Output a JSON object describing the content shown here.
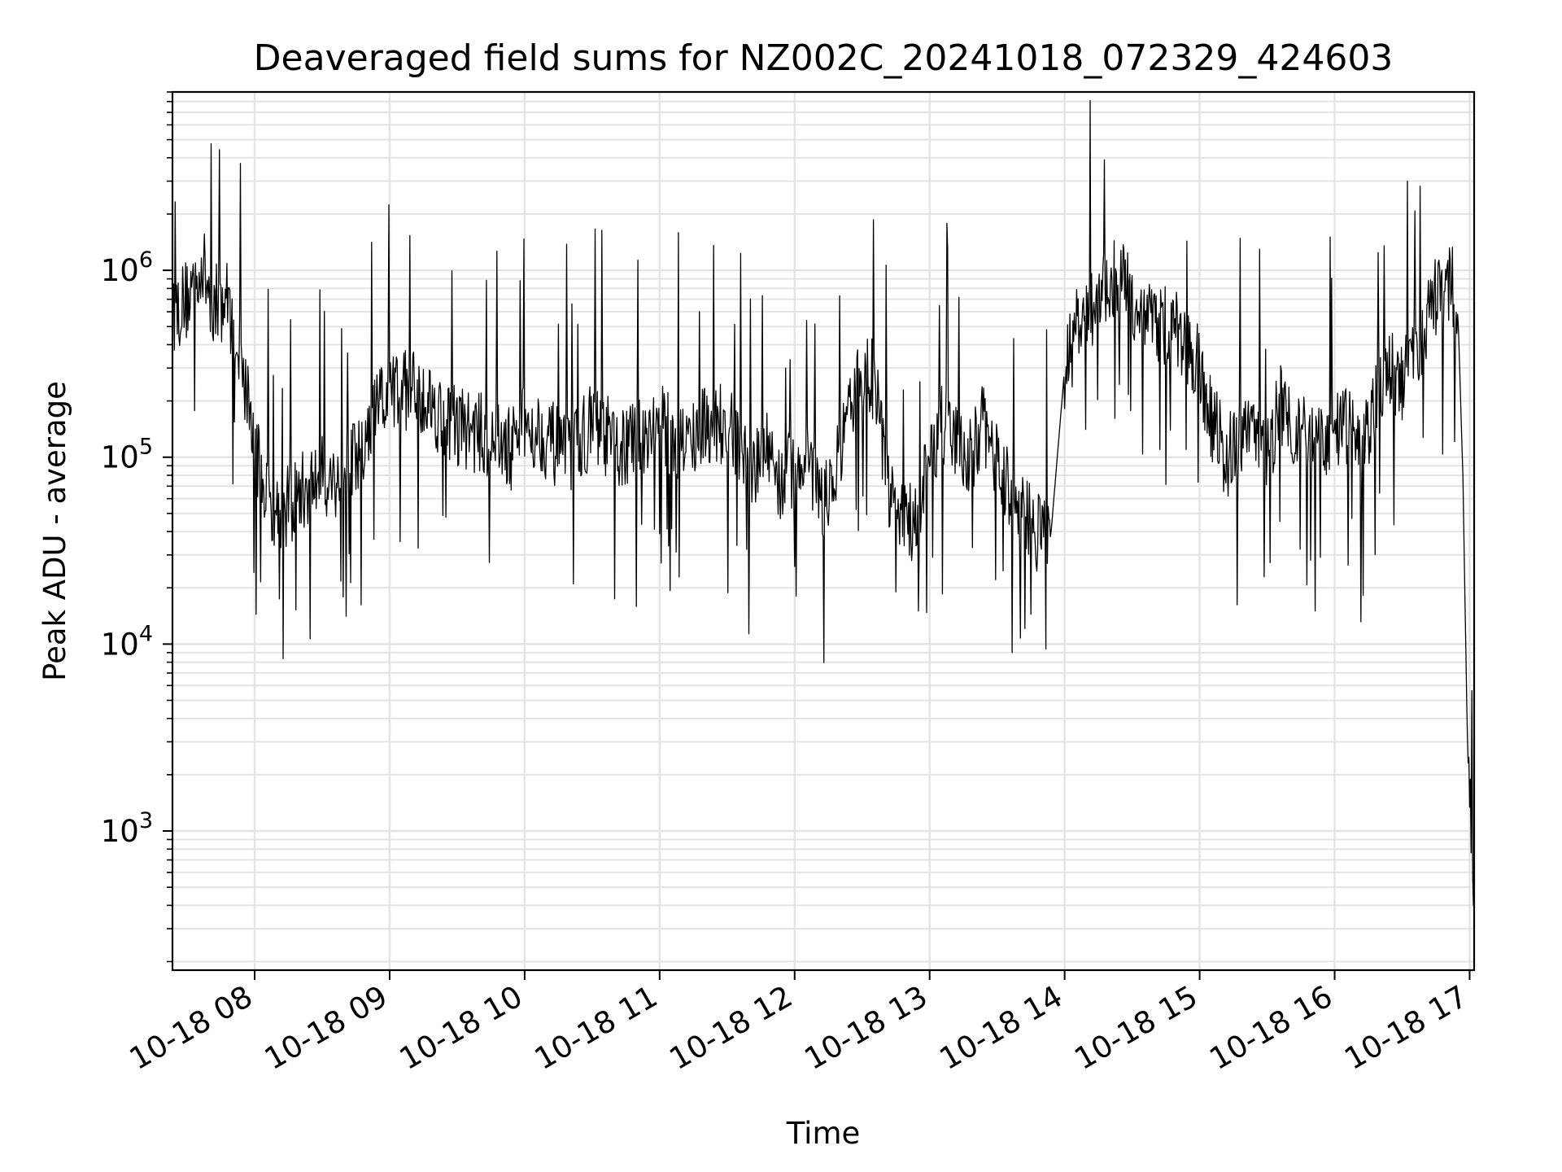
{
  "chart_data": {
    "type": "line",
    "title": "Deaveraged field sums for NZ002C_20241018_072329_424603",
    "xlabel": "Time",
    "ylabel": "Peak ADU - average",
    "y_scale": "log",
    "ylim": [
      180,
      9000000
    ],
    "xlim": [
      "2024-10-18 07:23:29",
      "2024-10-18 17:02:00"
    ],
    "x_tick_labels": [
      "10-18 08",
      "10-18 09",
      "10-18 10",
      "10-18 11",
      "10-18 12",
      "10-18 13",
      "10-18 14",
      "10-18 15",
      "10-18 16",
      "10-18 17"
    ],
    "y_tick_labels": [
      {
        "base": "10",
        "exp": "3",
        "value": 1000
      },
      {
        "base": "10",
        "exp": "4",
        "value": 10000
      },
      {
        "base": "10",
        "exp": "5",
        "value": 100000
      },
      {
        "base": "10",
        "exp": "6",
        "value": 1000000
      }
    ],
    "grid": true,
    "line_color": "#000000",
    "series": [
      {
        "x": [
          "2024-10-18 07:24",
          "2024-10-18 07:30",
          "2024-10-18 07:36",
          "2024-10-18 07:42",
          "2024-10-18 07:48",
          "2024-10-18 07:54",
          "2024-10-18 08:00",
          "2024-10-18 08:06",
          "2024-10-18 08:12",
          "2024-10-18 08:18",
          "2024-10-18 08:24",
          "2024-10-18 08:30",
          "2024-10-18 08:36",
          "2024-10-18 08:42",
          "2024-10-18 08:48",
          "2024-10-18 08:54",
          "2024-10-18 09:00",
          "2024-10-18 09:06",
          "2024-10-18 09:12",
          "2024-10-18 09:18",
          "2024-10-18 09:24",
          "2024-10-18 09:30",
          "2024-10-18 09:36",
          "2024-10-18 09:42",
          "2024-10-18 09:48",
          "2024-10-18 09:54",
          "2024-10-18 10:00",
          "2024-10-18 10:06",
          "2024-10-18 10:12",
          "2024-10-18 10:18",
          "2024-10-18 10:24",
          "2024-10-18 10:30",
          "2024-10-18 10:36",
          "2024-10-18 10:42",
          "2024-10-18 10:48",
          "2024-10-18 10:54",
          "2024-10-18 11:00",
          "2024-10-18 11:06",
          "2024-10-18 11:12",
          "2024-10-18 11:18",
          "2024-10-18 11:24",
          "2024-10-18 11:30",
          "2024-10-18 11:36",
          "2024-10-18 11:42",
          "2024-10-18 11:48",
          "2024-10-18 11:54",
          "2024-10-18 12:00",
          "2024-10-18 12:06",
          "2024-10-18 12:12",
          "2024-10-18 12:18",
          "2024-10-18 12:24",
          "2024-10-18 12:30",
          "2024-10-18 12:36",
          "2024-10-18 12:42",
          "2024-10-18 12:48",
          "2024-10-18 12:54",
          "2024-10-18 13:00",
          "2024-10-18 13:06",
          "2024-10-18 13:12",
          "2024-10-18 13:18",
          "2024-10-18 13:24",
          "2024-10-18 13:30",
          "2024-10-18 13:36",
          "2024-10-18 13:42",
          "2024-10-18 13:48",
          "2024-10-18 13:54",
          "2024-10-18 14:00",
          "2024-10-18 14:06",
          "2024-10-18 14:12",
          "2024-10-18 14:18",
          "2024-10-18 14:24",
          "2024-10-18 14:30",
          "2024-10-18 14:36",
          "2024-10-18 14:42",
          "2024-10-18 14:48",
          "2024-10-18 14:54",
          "2024-10-18 15:00",
          "2024-10-18 15:06",
          "2024-10-18 15:12",
          "2024-10-18 15:18",
          "2024-10-18 15:24",
          "2024-10-18 15:30",
          "2024-10-18 15:36",
          "2024-10-18 15:42",
          "2024-10-18 15:48",
          "2024-10-18 15:54",
          "2024-10-18 16:00",
          "2024-10-18 16:06",
          "2024-10-18 16:12",
          "2024-10-18 16:18",
          "2024-10-18 16:24",
          "2024-10-18 16:30",
          "2024-10-18 16:36",
          "2024-10-18 16:42",
          "2024-10-18 16:48",
          "2024-10-18 16:52",
          "2024-10-18 16:55",
          "2024-10-18 16:57",
          "2024-10-18 16:59",
          "2024-10-18 17:00",
          "2024-10-18 17:01",
          "2024-10-18 17:02"
        ],
        "y": [
          600000,
          700000,
          1100000,
          650000,
          700000,
          350000,
          120000,
          60000,
          50000,
          60000,
          70000,
          80000,
          75000,
          90000,
          100000,
          180000,
          220000,
          230000,
          240000,
          200000,
          160000,
          150000,
          140000,
          130000,
          120000,
          110000,
          150000,
          140000,
          120000,
          100000,
          120000,
          150000,
          130000,
          110000,
          120000,
          140000,
          150000,
          130000,
          120000,
          140000,
          160000,
          150000,
          100000,
          80000,
          120000,
          70000,
          90000,
          100000,
          60000,
          80000,
          150000,
          300000,
          250000,
          60000,
          50000,
          40000,
          100000,
          150000,
          120000,
          100000,
          150000,
          90000,
          70000,
          50000,
          40000,
          40000,
          300000,
          500000,
          600000,
          800000,
          900000,
          700000,
          600000,
          500000,
          500000,
          400000,
          300000,
          150000,
          100000,
          120000,
          130000,
          100000,
          200000,
          150000,
          120000,
          110000,
          130000,
          150000,
          100000,
          200000,
          300000,
          250000,
          350000,
          600000,
          800000,
          900000,
          500000,
          80000,
          3000,
          1400,
          1200,
          500
        ]
      }
    ]
  }
}
